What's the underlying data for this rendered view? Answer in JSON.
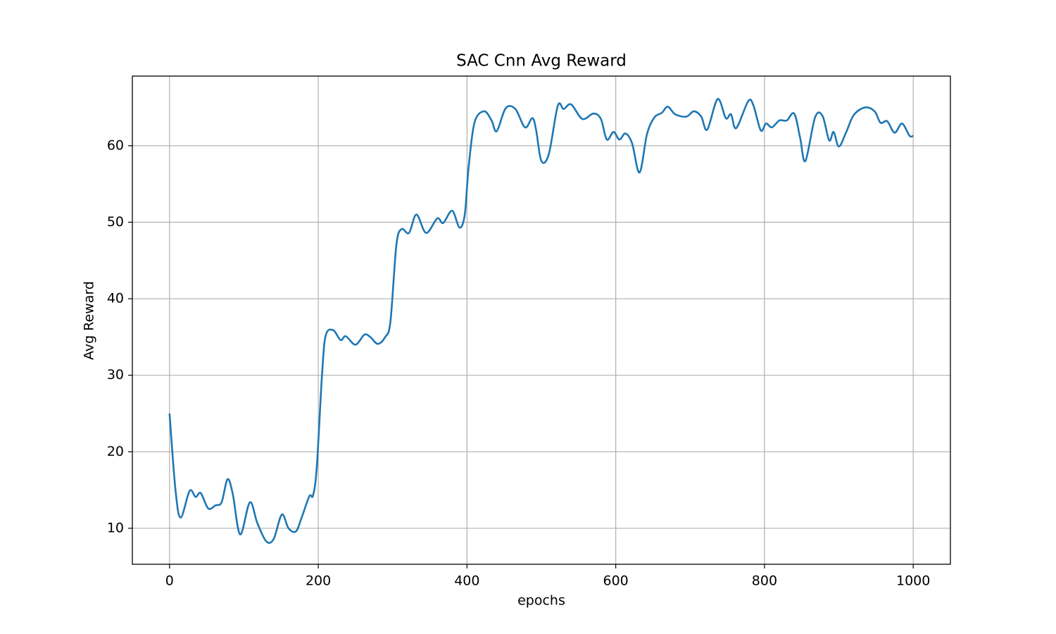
{
  "chart_data": {
    "type": "line",
    "title": "SAC Cnn Avg Reward",
    "xlabel": "epochs",
    "ylabel": "Avg Reward",
    "x": [
      0,
      8,
      15,
      27,
      35,
      42,
      52,
      62,
      70,
      78,
      85,
      95,
      108,
      118,
      130,
      140,
      151,
      160,
      170,
      178,
      188,
      193,
      198,
      205,
      210,
      220,
      230,
      237,
      250,
      262,
      270,
      280,
      290,
      297,
      305,
      312,
      322,
      332,
      345,
      360,
      368,
      380,
      390,
      397,
      402,
      410,
      423,
      433,
      440,
      452,
      465,
      478,
      488,
      493,
      500,
      510,
      522,
      530,
      540,
      555,
      570,
      580,
      588,
      597,
      605,
      613,
      622,
      632,
      642,
      652,
      662,
      670,
      680,
      695,
      705,
      715,
      723,
      737,
      748,
      755,
      762,
      778,
      785,
      795,
      802,
      810,
      820,
      830,
      840,
      848,
      855,
      868,
      878,
      887,
      893,
      900,
      910,
      920,
      935,
      948,
      956,
      965,
      975,
      985,
      995,
      1000
    ],
    "series": [
      {
        "color": "#1f77b4",
        "values": [
          25,
          15,
          11.4,
          14.9,
          14.1,
          14.6,
          12.6,
          13.0,
          13.4,
          16.4,
          14.5,
          9.2,
          13.4,
          10.7,
          8.3,
          8.6,
          11.8,
          10.0,
          9.6,
          11.5,
          14.2,
          14.3,
          18,
          30,
          35.2,
          35.9,
          34.6,
          35.1,
          34.0,
          35.3,
          35.0,
          34.1,
          35.0,
          37,
          47,
          49.1,
          48.6,
          51.0,
          48.6,
          50.5,
          49.9,
          51.5,
          49.3,
          51,
          57,
          63.0,
          64.5,
          63.3,
          61.9,
          64.9,
          64.8,
          62.4,
          63.6,
          62,
          58.0,
          58.9,
          65.2,
          64.8,
          65.4,
          63.5,
          64.2,
          63.5,
          60.8,
          61.8,
          60.8,
          61.6,
          60.3,
          56.5,
          61.5,
          63.7,
          64.3,
          65.1,
          64.1,
          63.8,
          64.5,
          63.8,
          62.1,
          66.1,
          63.6,
          64.1,
          62.3,
          65.8,
          65.3,
          62.0,
          62.9,
          62.4,
          63.3,
          63.3,
          64.2,
          61,
          58.0,
          63.7,
          63.9,
          60.7,
          61.8,
          59.9,
          61.8,
          64.0,
          65.0,
          64.5,
          63.0,
          63.2,
          61.7,
          62.9,
          61.3,
          61.3
        ]
      }
    ],
    "xlim": [
      -50,
      1050
    ],
    "ylim": [
      5.3,
      69.1
    ],
    "xticks": [
      0,
      200,
      400,
      600,
      800,
      1000
    ],
    "yticks": [
      10,
      20,
      30,
      40,
      50,
      60
    ],
    "grid": true
  }
}
